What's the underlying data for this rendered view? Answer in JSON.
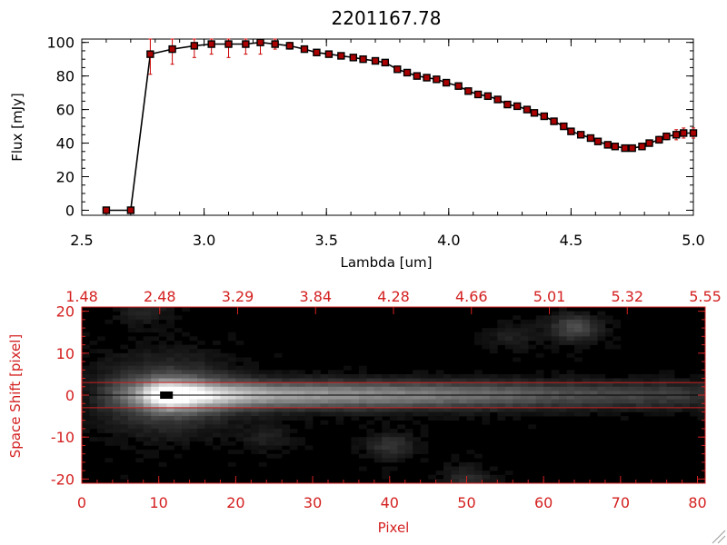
{
  "chart_data": [
    {
      "type": "line",
      "title": "2201167.78",
      "xlabel": "Lambda [um]",
      "ylabel": "Flux [mJy]",
      "xlim": [
        2.5,
        5.0
      ],
      "ylim": [
        -3,
        102
      ],
      "xticks": [
        "2.5",
        "3.0",
        "3.5",
        "4.0",
        "4.5",
        "5.0"
      ],
      "yticks": [
        "0",
        "20",
        "40",
        "60",
        "80",
        "100"
      ],
      "colors": {
        "line": "#000000",
        "markers": "#aa0000",
        "error_bars": "#cc0000"
      },
      "series": [
        {
          "x": [
            2.6,
            2.7,
            2.78,
            2.87,
            2.96,
            3.03,
            3.1,
            3.17,
            3.23,
            3.29,
            3.35,
            3.41,
            3.46,
            3.51,
            3.56,
            3.61,
            3.65,
            3.7,
            3.74,
            3.79,
            3.83,
            3.87,
            3.91,
            3.95,
            3.99,
            4.04,
            4.08,
            4.12,
            4.16,
            4.2,
            4.24,
            4.28,
            4.32,
            4.35,
            4.39,
            4.43,
            4.47,
            4.5,
            4.54,
            4.58,
            4.61,
            4.65,
            4.68,
            4.72,
            4.75,
            4.79,
            4.82,
            4.86,
            4.89,
            4.93,
            4.96,
            5.0
          ],
          "y": [
            0,
            0,
            93,
            96,
            98,
            99,
            99,
            99,
            100,
            99,
            98,
            96,
            94,
            93,
            92,
            91,
            90,
            89,
            88,
            84,
            82,
            80,
            79,
            78,
            76,
            74,
            71,
            69,
            68,
            66,
            63,
            62,
            60,
            58,
            56,
            53,
            50,
            47,
            45,
            43,
            41,
            39,
            38,
            37,
            37,
            38,
            40,
            42,
            44,
            45,
            46,
            46
          ],
          "yerr": [
            0,
            0,
            12,
            9,
            7,
            6,
            8,
            6,
            7,
            3,
            2,
            1,
            1,
            1,
            1,
            1,
            1,
            1,
            1,
            1,
            1,
            1,
            1,
            1,
            1,
            1,
            1,
            1,
            1,
            1,
            1,
            1,
            1,
            1,
            1,
            1,
            1,
            1,
            1,
            1,
            1,
            1,
            1,
            1,
            1,
            1,
            1,
            2,
            2,
            3,
            3,
            3
          ]
        }
      ]
    },
    {
      "type": "heatmap",
      "xlabel": "Pixel",
      "ylabel": "Space Shift [pixel]",
      "xlim": [
        0,
        81
      ],
      "ylim": [
        -21,
        21
      ],
      "xticks": [
        "0",
        "10",
        "20",
        "30",
        "40",
        "50",
        "60",
        "70",
        "80"
      ],
      "yticks": [
        "-20",
        "-10",
        "0",
        "10",
        "20"
      ],
      "top_axis_ticks": [
        "1.48",
        "2.48",
        "3.29",
        "3.84",
        "4.28",
        "4.66",
        "5.01",
        "5.32",
        "5.55"
      ],
      "colormap": "grayscale",
      "colors": {
        "axis": "#d42020",
        "trace_lines": "#cc2020",
        "center_line": "#000000",
        "background": "#000000"
      },
      "extraction_window": [
        -3,
        3
      ],
      "center_line": 0,
      "marker": {
        "x": 11,
        "y": 0
      },
      "trace": [
        {
          "x": 7,
          "amp": 0.3
        },
        {
          "x": 11,
          "amp": 1.0
        },
        {
          "x": 16,
          "amp": 0.75
        },
        {
          "x": 25,
          "amp": 0.62
        },
        {
          "x": 35,
          "amp": 0.55
        },
        {
          "x": 45,
          "amp": 0.48
        },
        {
          "x": 55,
          "amp": 0.38
        },
        {
          "x": 62,
          "amp": 0.3
        },
        {
          "x": 70,
          "amp": 0.26
        },
        {
          "x": 77,
          "amp": 0.22
        },
        {
          "x": 80,
          "amp": 0.18
        }
      ],
      "blobs": [
        {
          "x": 64,
          "y": 16,
          "amp": 0.28
        },
        {
          "x": 40,
          "y": -12,
          "amp": 0.18
        },
        {
          "x": 50,
          "y": -20,
          "amp": 0.15
        },
        {
          "x": 8,
          "y": 20,
          "amp": 0.12
        },
        {
          "x": 56,
          "y": 14,
          "amp": 0.1
        },
        {
          "x": 24,
          "y": -10,
          "amp": 0.1
        }
      ]
    }
  ]
}
